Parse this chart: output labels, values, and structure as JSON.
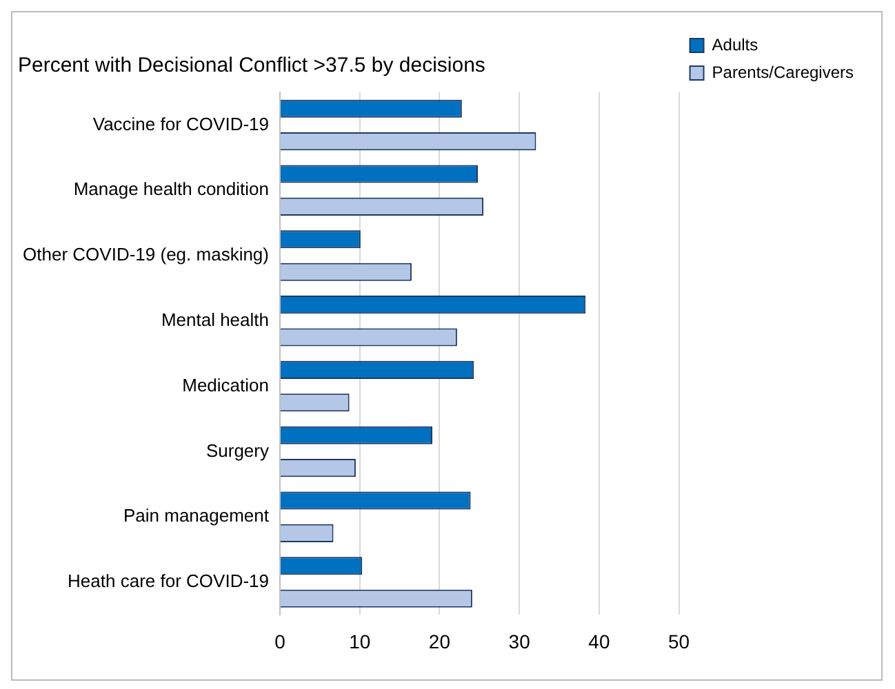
{
  "chart_data": {
    "type": "bar",
    "orientation": "horizontal",
    "title": "Percent with Decisional Conflict >37.5 by decisions",
    "categories": [
      "Vaccine for COVID-19",
      "Manage health condition",
      "Other COVID-19 (eg. masking)",
      "Mental health",
      "Medication",
      "Surgery",
      "Pain management",
      "Heath care for COVID-19"
    ],
    "series": [
      {
        "name": "Adults",
        "color": "#0070c0",
        "values": [
          22.8,
          24.8,
          10.1,
          38.3,
          24.3,
          19.1,
          23.9,
          10.3
        ]
      },
      {
        "name": "Parents/Caregivers",
        "color": "#b4c7e7",
        "values": [
          32.1,
          25.5,
          16.5,
          22.2,
          8.7,
          9.5,
          6.7,
          24.1
        ]
      }
    ],
    "xlim": [
      0,
      50
    ],
    "xticks": [
      0,
      10,
      20,
      30,
      40,
      50
    ],
    "grid": "x",
    "legend": "right"
  }
}
